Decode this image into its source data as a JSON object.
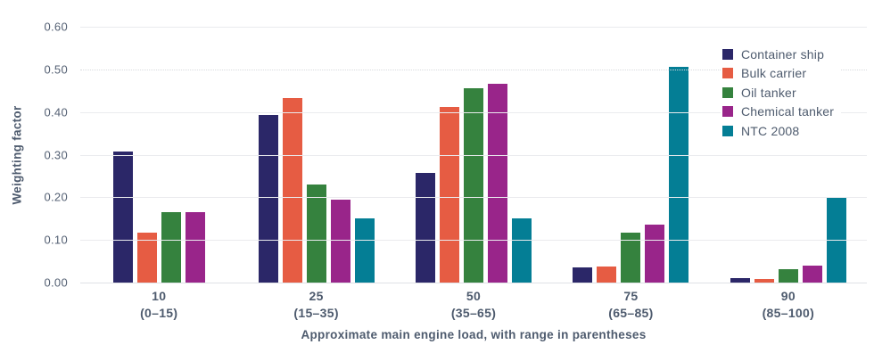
{
  "chart_data": {
    "type": "bar",
    "title": "",
    "xlabel": "Approximate main engine load, with range in parentheses",
    "ylabel": "Weighting factor",
    "ylim": [
      0,
      0.6
    ],
    "ytick_interval": 0.1,
    "yticks": [
      "0.00",
      "0.10",
      "0.20",
      "0.30",
      "0.40",
      "0.50",
      "0.60"
    ],
    "grid": "horizontal",
    "dotted_gridline_at": 0.5,
    "legend_position": "top-right",
    "skip_zero_bars": true,
    "categories": [
      {
        "load": "10",
        "range": "(0–15)"
      },
      {
        "load": "25",
        "range": "(15–35)"
      },
      {
        "load": "50",
        "range": "(35–65)"
      },
      {
        "load": "75",
        "range": "(65–85)"
      },
      {
        "load": "90",
        "range": "(85–100)"
      }
    ],
    "series": [
      {
        "name": "Container ship",
        "color": "#2b2768",
        "values": [
          0.307,
          0.394,
          0.257,
          0.036,
          0.011
        ]
      },
      {
        "name": "Bulk carrier",
        "color": "#e65c43",
        "values": [
          0.117,
          0.433,
          0.411,
          0.037,
          0.008
        ]
      },
      {
        "name": "Oil tanker",
        "color": "#35823e",
        "values": [
          0.165,
          0.231,
          0.456,
          0.117,
          0.032
        ]
      },
      {
        "name": "Chemical tanker",
        "color": "#99258a",
        "values": [
          0.165,
          0.194,
          0.467,
          0.135,
          0.04
        ]
      },
      {
        "name": "NTC 2008",
        "color": "#047e95",
        "values": [
          0.0,
          0.15,
          0.15,
          0.505,
          0.201
        ]
      }
    ]
  }
}
